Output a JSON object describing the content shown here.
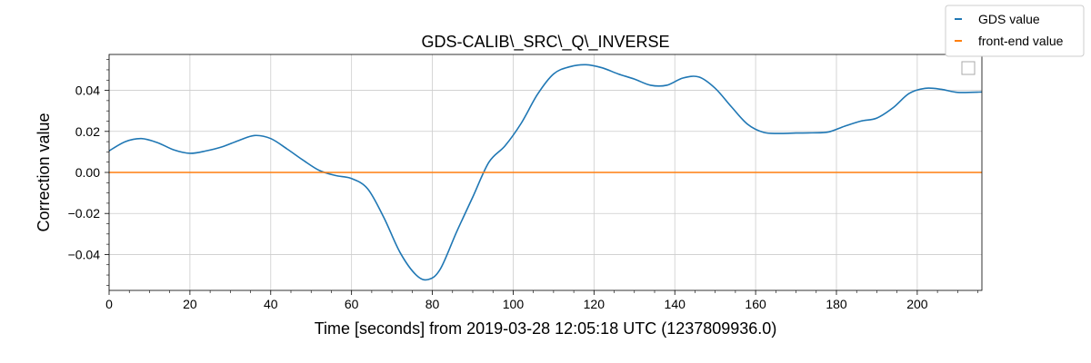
{
  "chart_data": {
    "type": "line",
    "title": "GDS-CALIB\\_SRC\\_Q\\_INVERSE",
    "xlabel": "Time [seconds] from 2019-03-28 12:05:18 UTC (1237809936.0)",
    "ylabel": "Correction value",
    "xlim": [
      0,
      216
    ],
    "ylim": [
      -0.0575,
      0.0575
    ],
    "x_ticks": [
      0,
      20,
      40,
      60,
      80,
      100,
      120,
      140,
      160,
      180,
      200
    ],
    "x_tick_labels": [
      "0",
      "20",
      "40",
      "60",
      "80",
      "100",
      "120",
      "140",
      "160",
      "180",
      "200"
    ],
    "y_ticks": [
      -0.04,
      -0.02,
      0.0,
      0.02,
      0.04
    ],
    "y_tick_labels": [
      "−0.04",
      "−0.02",
      "0.00",
      "0.02",
      "0.04"
    ],
    "grid": true,
    "legend_position": "top-right (outside plot)",
    "series": [
      {
        "name": "GDS value",
        "color": "#1f77b4",
        "x": [
          0,
          4,
          8,
          12,
          16,
          20,
          24,
          28,
          32,
          36,
          40,
          44,
          48,
          52,
          56,
          60,
          64,
          68,
          72,
          76,
          79,
          82,
          86,
          90,
          94,
          98,
          102,
          106,
          110,
          114,
          118,
          122,
          126,
          130,
          134,
          138,
          142,
          146,
          150,
          154,
          158,
          162,
          166,
          170,
          174,
          178,
          182,
          186,
          190,
          194,
          198,
          202,
          206,
          210,
          216
        ],
        "y": [
          0.0105,
          0.015,
          0.0165,
          0.0145,
          0.011,
          0.0093,
          0.0105,
          0.0125,
          0.0155,
          0.018,
          0.0165,
          0.0115,
          0.006,
          0.001,
          -0.0015,
          -0.003,
          -0.008,
          -0.022,
          -0.039,
          -0.05,
          -0.0522,
          -0.047,
          -0.029,
          -0.012,
          0.005,
          0.013,
          0.024,
          0.038,
          0.048,
          0.0515,
          0.0525,
          0.051,
          0.048,
          0.0455,
          0.0425,
          0.0425,
          0.046,
          0.0465,
          0.041,
          0.032,
          0.0235,
          0.0195,
          0.019,
          0.0192,
          0.0193,
          0.0197,
          0.0225,
          0.025,
          0.0265,
          0.0315,
          0.0385,
          0.041,
          0.0405,
          0.039,
          0.0392
        ]
      },
      {
        "name": "front-end value",
        "color": "#ff7f0e",
        "x": [
          0,
          216
        ],
        "y": [
          0.0,
          0.0
        ]
      }
    ]
  }
}
